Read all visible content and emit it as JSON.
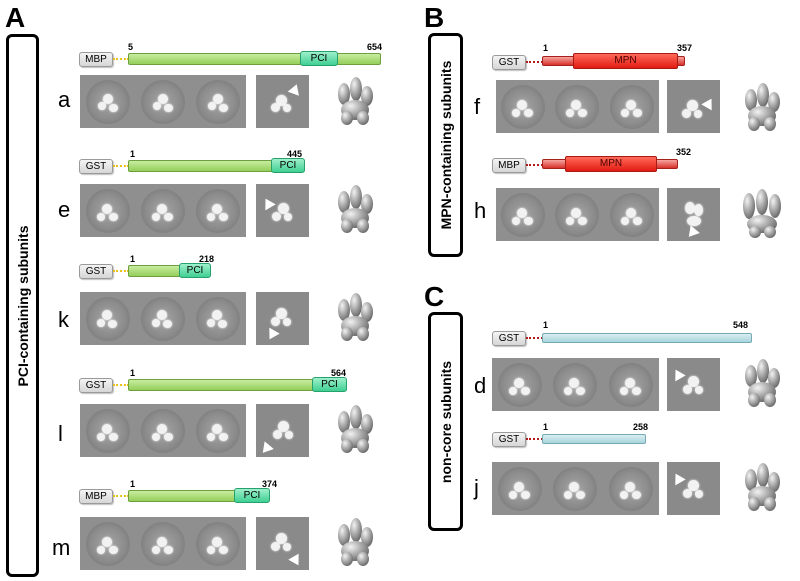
{
  "panels": {
    "A": {
      "letter": "A",
      "title": "PCI-containing subunits"
    },
    "B": {
      "letter": "B",
      "title": "MPN-containing subunits"
    },
    "C": {
      "letter": "C",
      "title": "non-core subunits"
    }
  },
  "rows": {
    "a": {
      "label": "a",
      "tag": "MBP",
      "start": "5",
      "end": "654",
      "domain": "PCI"
    },
    "e": {
      "label": "e",
      "tag": "GST",
      "start": "1",
      "end": "445",
      "domain": "PCI"
    },
    "k": {
      "label": "k",
      "tag": "GST",
      "start": "1",
      "end": "218",
      "domain": "PCI"
    },
    "l": {
      "label": "l",
      "tag": "GST",
      "start": "1",
      "end": "564",
      "domain": "PCI"
    },
    "m": {
      "label": "m",
      "tag": "MBP",
      "start": "1",
      "end": "374",
      "domain": "PCI"
    },
    "f": {
      "label": "f",
      "tag": "GST",
      "start": "1",
      "end": "357",
      "domain": "MPN"
    },
    "h": {
      "label": "h",
      "tag": "MBP",
      "start": "1",
      "end": "352",
      "domain": "MPN"
    },
    "d": {
      "label": "d",
      "tag": "GST",
      "start": "1",
      "end": "548"
    },
    "j": {
      "label": "j",
      "tag": "GST",
      "start": "1",
      "end": "258"
    }
  },
  "colors": {
    "pci_bar": "#95cf5a",
    "pci_domain": "#3fcf93",
    "mpn_domain": "#e21b12",
    "noncore_bar": "#a8d4dc",
    "linker_A": "#e8c21a",
    "linker_BC": "#b11a1a"
  }
}
